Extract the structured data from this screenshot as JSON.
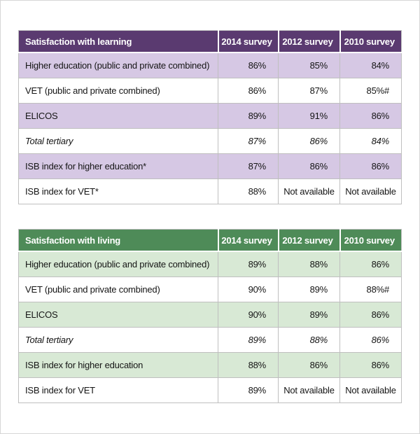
{
  "page": {
    "background": "#ffffff",
    "frame_color": "#d6d6d6",
    "cell_border_color": "#bfbfbf"
  },
  "not_available_text": "Not available",
  "tables": [
    {
      "title": "Satisfaction with learning",
      "theme": {
        "header_bg": "#5a3a70",
        "header_text": "#ffffff",
        "band_bg": "#d6c8e4",
        "plain_bg": "#ffffff"
      },
      "columns": [
        "2014 survey",
        "2012 survey",
        "2010 survey"
      ],
      "rows": [
        {
          "label": "Higher education (public and private combined)",
          "values": [
            "86%",
            "85%",
            "84%"
          ],
          "shaded": true,
          "italic": false
        },
        {
          "label": "VET (public and private combined)",
          "values": [
            "86%",
            "87%",
            "85%#"
          ],
          "shaded": false,
          "italic": false
        },
        {
          "label": "ELICOS",
          "values": [
            "89%",
            "91%",
            "86%"
          ],
          "shaded": true,
          "italic": false
        },
        {
          "label": "Total tertiary",
          "values": [
            "87%",
            "86%",
            "84%"
          ],
          "shaded": false,
          "italic": true
        },
        {
          "label": "ISB index for higher education*",
          "values": [
            "87%",
            "86%",
            "86%"
          ],
          "shaded": true,
          "italic": false
        },
        {
          "label": "ISB index for VET*",
          "values": [
            "88%",
            "Not available",
            "Not available"
          ],
          "shaded": false,
          "italic": false
        }
      ]
    },
    {
      "title": "Satisfaction with living",
      "theme": {
        "header_bg": "#4e8b58",
        "header_text": "#ffffff",
        "band_bg": "#d8e9d5",
        "plain_bg": "#ffffff"
      },
      "columns": [
        "2014 survey",
        "2012 survey",
        "2010 survey"
      ],
      "rows": [
        {
          "label": "Higher education (public and private combined)",
          "values": [
            "89%",
            "88%",
            "86%"
          ],
          "shaded": true,
          "italic": false
        },
        {
          "label": "VET (public and private combined)",
          "values": [
            "90%",
            "89%",
            "88%#"
          ],
          "shaded": false,
          "italic": false
        },
        {
          "label": "ELICOS",
          "values": [
            "90%",
            "89%",
            "86%"
          ],
          "shaded": true,
          "italic": false
        },
        {
          "label": "Total tertiary",
          "values": [
            "89%",
            "88%",
            "86%"
          ],
          "shaded": false,
          "italic": true
        },
        {
          "label": "ISB index for higher education",
          "values": [
            "88%",
            "86%",
            "86%"
          ],
          "shaded": true,
          "italic": false
        },
        {
          "label": "ISB index for VET",
          "values": [
            "89%",
            "Not available",
            "Not available"
          ],
          "shaded": false,
          "italic": false
        }
      ]
    }
  ]
}
